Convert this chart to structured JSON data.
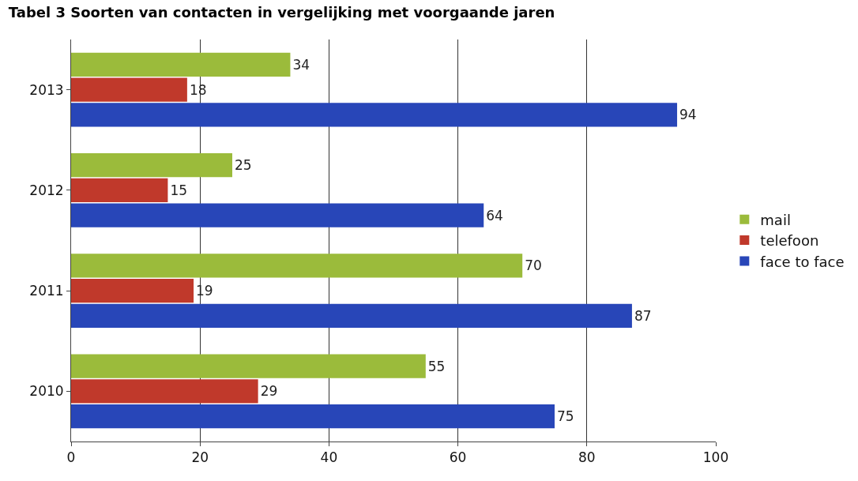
{
  "chart_data": {
    "type": "bar",
    "orientation": "horizontal",
    "title": "Tabel 3 Soorten van contacten in vergelijking met voorgaande jaren",
    "categories": [
      "2013",
      "2012",
      "2011",
      "2010"
    ],
    "series": [
      {
        "name": "mail",
        "color": "#9bbb3b",
        "values": [
          34,
          25,
          70,
          55
        ]
      },
      {
        "name": "telefoon",
        "color": "#c0392b",
        "values": [
          18,
          15,
          19,
          29
        ]
      },
      {
        "name": "face to face",
        "color": "#2846b8",
        "values": [
          94,
          64,
          87,
          75
        ]
      }
    ],
    "xlim": [
      0,
      100
    ],
    "xticks": [
      0,
      20,
      40,
      60,
      80,
      100
    ],
    "grid": "x",
    "legend": "right",
    "data_labels": true
  }
}
